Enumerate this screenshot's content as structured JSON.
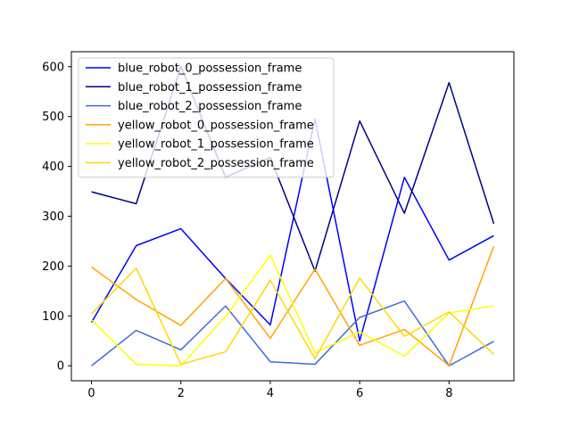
{
  "chart_data": {
    "type": "line",
    "title": "",
    "xlabel": "",
    "ylabel": "",
    "xlim": [
      -0.45,
      9.45
    ],
    "ylim": [
      -30,
      630
    ],
    "x_ticks": [
      0,
      2,
      4,
      6,
      8
    ],
    "y_ticks": [
      0,
      100,
      200,
      300,
      400,
      500,
      600
    ],
    "x_tick_labels": [
      "0",
      "2",
      "4",
      "6",
      "8"
    ],
    "y_tick_labels": [
      "0",
      "100",
      "200",
      "300",
      "400",
      "500",
      "600"
    ],
    "grid": false,
    "legend_position": "upper-left",
    "x": [
      0,
      1,
      2,
      3,
      4,
      5,
      6,
      7,
      8,
      9
    ],
    "series": [
      {
        "name": "blue_robot_0_possession_frame",
        "color": "#0000ff",
        "values": [
          87,
          241,
          275,
          175,
          82,
          495,
          50,
          378,
          212,
          261
        ]
      },
      {
        "name": "blue_robot_1_possession_frame",
        "color": "#00008b",
        "values": [
          349,
          325,
          600,
          378,
          418,
          190,
          491,
          306,
          568,
          285
        ]
      },
      {
        "name": "blue_robot_2_possession_frame",
        "color": "#4169e1",
        "values": [
          0,
          71,
          32,
          120,
          8,
          3,
          97,
          130,
          0,
          49
        ]
      },
      {
        "name": "yellow_robot_0_possession_frame",
        "color": "#ffa500",
        "values": [
          198,
          133,
          81,
          175,
          55,
          194,
          41,
          73,
          0,
          240
        ]
      },
      {
        "name": "yellow_robot_1_possession_frame",
        "color": "#ffff00",
        "values": [
          92,
          3,
          0,
          99,
          222,
          26,
          68,
          19,
          106,
          120
        ]
      },
      {
        "name": "yellow_robot_2_possession_frame",
        "color": "#ffd700",
        "values": [
          104,
          196,
          3,
          28,
          172,
          14,
          176,
          59,
          108,
          23
        ]
      }
    ]
  }
}
